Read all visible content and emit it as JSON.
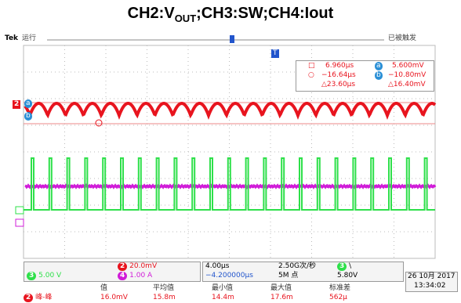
{
  "title": {
    "prefix": "CH2:V",
    "sub": "OUT",
    "suffix": ";CH3:SW;CH4:Iout"
  },
  "top_bar": {
    "brand": "Tek",
    "run_state": "运行",
    "trigger_state": "已被触发"
  },
  "cursors": {
    "a_time": "6.960µs",
    "a_value": "5.600mV",
    "b_time": "−16.64µs",
    "b_value": "−10.80mV",
    "delta_time": "△23.60µs",
    "delta_value": "△16.40mV",
    "a_label": "a",
    "b_label": "b"
  },
  "markers": {
    "ch2": "2",
    "a": "a",
    "b": "b",
    "trigger": "T"
  },
  "channels": {
    "ch2_label": "2",
    "ch2_scale": "20.0mV",
    "ch3_label": "3",
    "ch3_scale": "5.00 V",
    "ch4_label": "4",
    "ch4_scale": "1.00 A"
  },
  "timebase": {
    "scale": "4.00µs",
    "sample_rate": "2.50G次/秒",
    "position": "−4.200000µs",
    "record_length": "5M 点"
  },
  "trigger": {
    "source": "3",
    "level": "5.80V"
  },
  "clock": {
    "date": "26 10月 2017",
    "time": "13:34:02"
  },
  "measurement": {
    "channel": "2",
    "name": "峰-峰",
    "headers": [
      "值",
      "平均值",
      "最小值",
      "最大值",
      "标准差"
    ],
    "values": [
      "16.0mV",
      "15.8m",
      "14.4m",
      "17.6m",
      "562µ"
    ]
  }
}
